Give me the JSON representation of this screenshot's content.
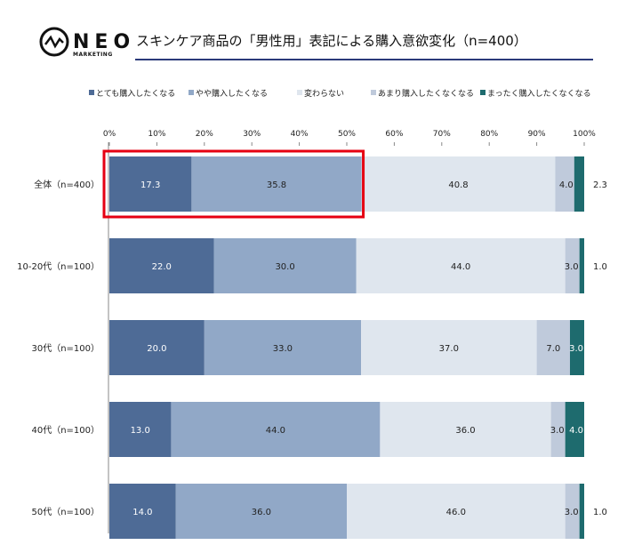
{
  "logo": {
    "name": "NEO",
    "sub": "MARKETING"
  },
  "chart_data": {
    "type": "bar",
    "orientation": "horizontal",
    "stacked": true,
    "title": "スキンケア商品の「男性用」表記による購入意欲変化（n=400）",
    "categories": [
      "全体（n=400）",
      "10-20代（n=100）",
      "30代（n=100）",
      "40代（n=100）",
      "50代（n=100）"
    ],
    "series": [
      {
        "name": "とても購入したくなる",
        "color": "#4E6B96",
        "values": [
          17.3,
          22.0,
          20.0,
          13.0,
          14.0
        ]
      },
      {
        "name": "やや購入したくなる",
        "color": "#91A8C7",
        "values": [
          35.8,
          30.0,
          33.0,
          44.0,
          36.0
        ]
      },
      {
        "name": "変わらない",
        "color": "#DFE6EE",
        "values": [
          40.8,
          44.0,
          37.0,
          36.0,
          46.0
        ]
      },
      {
        "name": "あまり購入したくなくなる",
        "color": "#BFCADB",
        "values": [
          4.0,
          3.0,
          7.0,
          3.0,
          3.0
        ]
      },
      {
        "name": "まったく購入したくなくなる",
        "color": "#1E6B6E",
        "values": [
          2.3,
          1.0,
          3.0,
          4.0,
          1.0
        ]
      }
    ],
    "xlim": [
      0,
      100
    ],
    "xticks": [
      "0%",
      "10%",
      "20%",
      "30%",
      "40%",
      "50%",
      "60%",
      "70%",
      "80%",
      "90%",
      "100%"
    ],
    "legend": "top",
    "grid": false,
    "highlight": {
      "category_index": 0,
      "series": [
        0,
        1
      ],
      "color": "#E60012"
    }
  }
}
